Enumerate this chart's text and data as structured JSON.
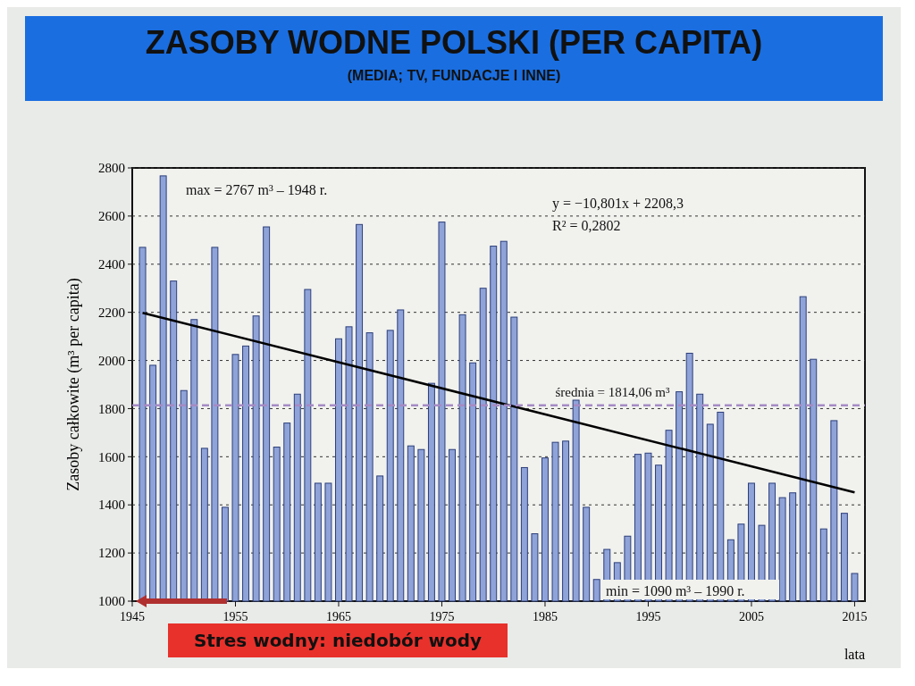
{
  "chart_data": {
    "type": "bar",
    "title": "ZASOBY WODNE POLSKI (PER CAPITA)",
    "subtitle": "(MEDIA; TV, FUNDACJE I INNE)",
    "xlabel": "lata",
    "ylabel": "Zasoby całkowite (m³ per capita)",
    "series": [
      {
        "color": "#8fa3d9",
        "x": [
          1946,
          1947,
          1948,
          1949,
          1950,
          1951,
          1952,
          1953,
          1954,
          1955,
          1956,
          1957,
          1958,
          1959,
          1960,
          1961,
          1962,
          1963,
          1964,
          1965,
          1966,
          1967,
          1968,
          1969,
          1970,
          1971,
          1972,
          1973,
          1974,
          1975,
          1976,
          1977,
          1978,
          1979,
          1980,
          1981,
          1982,
          1983,
          1984,
          1985,
          1986,
          1987,
          1988,
          1989,
          1990,
          1991,
          1992,
          1993,
          1994,
          1995,
          1996,
          1997,
          1998,
          1999,
          2000,
          2001,
          2002,
          2003,
          2004,
          2005,
          2006,
          2007,
          2008,
          2009,
          2010,
          2011,
          2012,
          2013,
          2014,
          2015
        ],
        "values": [
          2470,
          1980,
          2767,
          2330,
          1875,
          2170,
          1635,
          2470,
          1390,
          2025,
          2060,
          2185,
          2555,
          1640,
          1740,
          1860,
          2295,
          1490,
          1490,
          2090,
          2140,
          2565,
          2115,
          1520,
          2125,
          2210,
          1645,
          1630,
          1905,
          2575,
          1630,
          2190,
          1990,
          2300,
          2475,
          2495,
          2180,
          1555,
          1280,
          1595,
          1660,
          1665,
          1835,
          1390,
          1090,
          1215,
          1160,
          1270,
          1610,
          1615,
          1565,
          1710,
          1870,
          2030,
          1860,
          1735,
          1785,
          1255,
          1320,
          1490,
          1315,
          1490,
          1430,
          1450,
          2265,
          2005,
          1300,
          1750,
          1365,
          1115
        ]
      },
      {
        "type": "line",
        "color": "#000000",
        "x": [
          1946,
          2015
        ],
        "values": [
          2198,
          1452
        ]
      }
    ],
    "xlim": [
      1945,
      2016
    ],
    "xticks": [
      1945,
      1955,
      1965,
      1975,
      1985,
      1995,
      2005,
      2015
    ],
    "ylim": [
      1000,
      2800
    ],
    "yticks": [
      1000,
      1200,
      1400,
      1600,
      1800,
      2000,
      2200,
      2400,
      2600,
      2800
    ],
    "grid": "y",
    "ref_lines": [
      {
        "axis": "y",
        "value": 1814.06,
        "label": "średnia = 1814,06 m³",
        "color": "#a58bc4",
        "line_style": "dashed"
      }
    ],
    "annotations": [
      "max = 2767 m³ – 1948 r.",
      "y = −10,801x + 2208,3",
      "R² = 0,2802",
      "min = 1090 m³ – 1990 r.",
      "Stres wodny: niedobór wody"
    ]
  }
}
